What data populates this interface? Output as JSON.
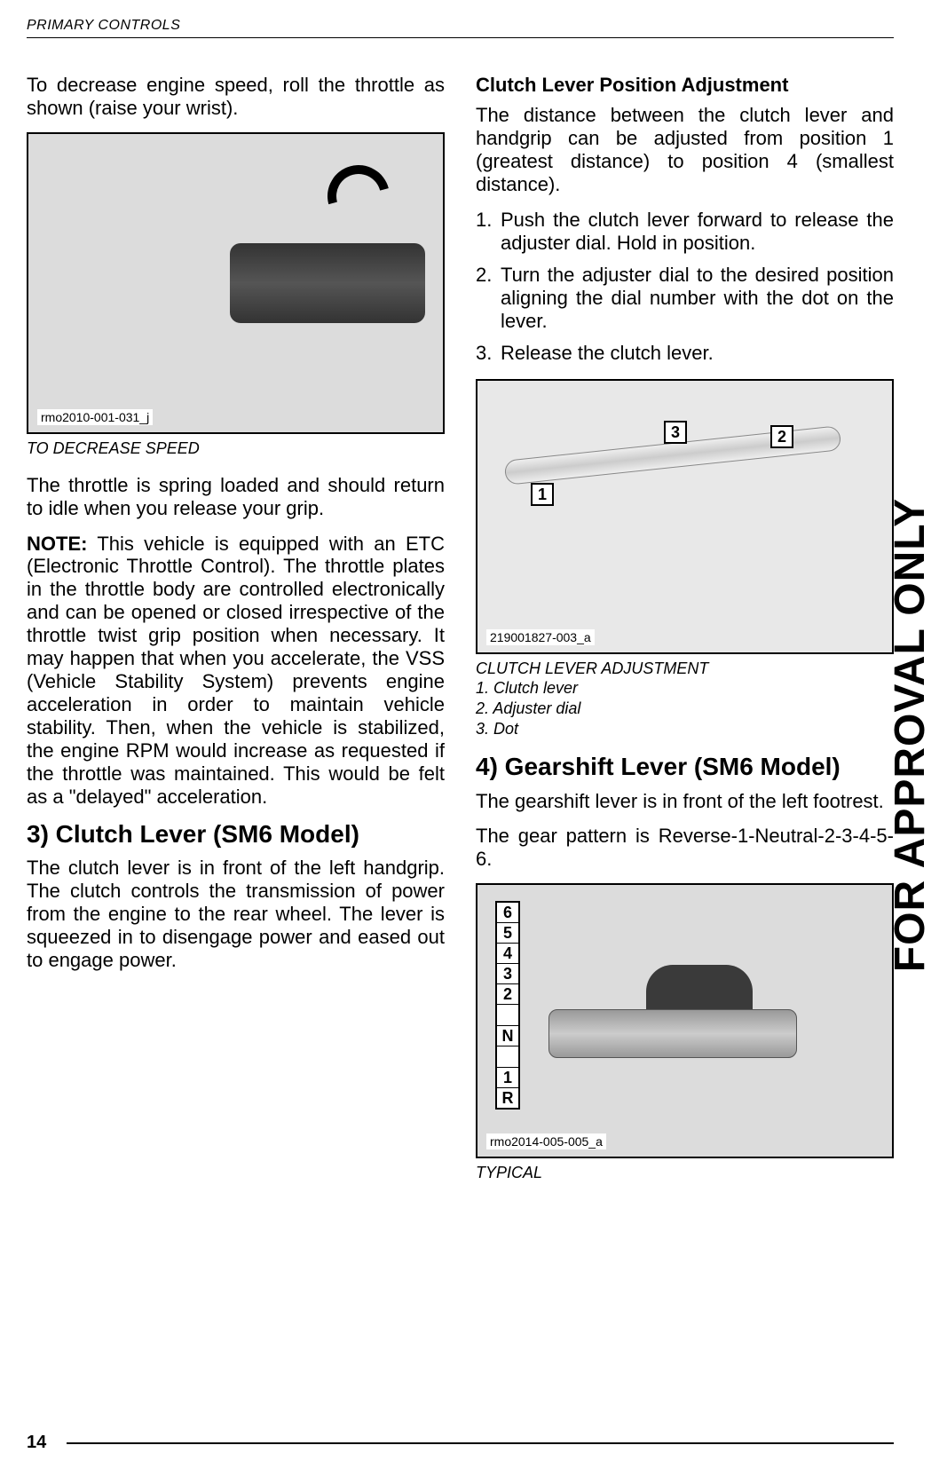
{
  "header": "PRIMARY CONTROLS",
  "watermark": "FOR APPROVAL ONLY",
  "page_number": "14",
  "left": {
    "intro": "To decrease engine speed, roll the throttle as shown (raise your wrist).",
    "fig1_label": "rmo2010-001-031_j",
    "fig1_caption": "TO DECREASE SPEED",
    "para1": "The throttle is spring loaded and should return to idle when you release your grip.",
    "note_label": "NOTE:",
    "note_body": " This vehicle is equipped with an ETC (Electronic Throttle Control). The throttle plates in the throttle body are controlled electronically and can be opened or closed irrespective of the throttle twist grip position when necessary. It may happen that when you accelerate, the VSS (Vehicle Stability System) prevents engine acceleration in order to maintain vehicle stability. Then, when the vehicle is stabilized, the engine RPM would increase as requested if the throttle was maintained. This would be felt as a \"delayed\" acceleration.",
    "section3_title": "3) Clutch Lever (SM6 Model)",
    "section3_body": "The clutch lever is in front of the left handgrip. The clutch controls the transmission of power from the engine to the rear wheel. The lever is squeezed in to disengage power and eased out to engage power."
  },
  "right": {
    "sub_title": "Clutch Lever Position Adjustment",
    "sub_intro": "The distance between the clutch lever and handgrip can be adjusted from position 1 (greatest distance) to position 4 (smallest distance).",
    "steps": [
      "Push the clutch lever forward to release the adjuster dial. Hold in position.",
      "Turn the adjuster dial to the desired position aligning the dial number with the dot on the lever.",
      "Release the clutch lever."
    ],
    "fig2_label": "219001827-003_a",
    "fig2_caption": "CLUTCH LEVER ADJUSTMENT",
    "fig2_legend1": "1.  Clutch lever",
    "fig2_legend2": "2.  Adjuster dial",
    "fig2_legend3": "3.  Dot",
    "callout1": "1",
    "callout2": "2",
    "callout3": "3",
    "section4_title": "4) Gearshift Lever (SM6 Model)",
    "section4_p1": "The gearshift lever is in front of the left footrest.",
    "section4_p2": "The gear pattern is Reverse-1-Neutral-2-3-4-5-6.",
    "fig3_label": "rmo2014-005-005_a",
    "fig3_caption": "TYPICAL",
    "gears": [
      "6",
      "5",
      "4",
      "3",
      "2",
      "N",
      "1",
      "R"
    ]
  }
}
